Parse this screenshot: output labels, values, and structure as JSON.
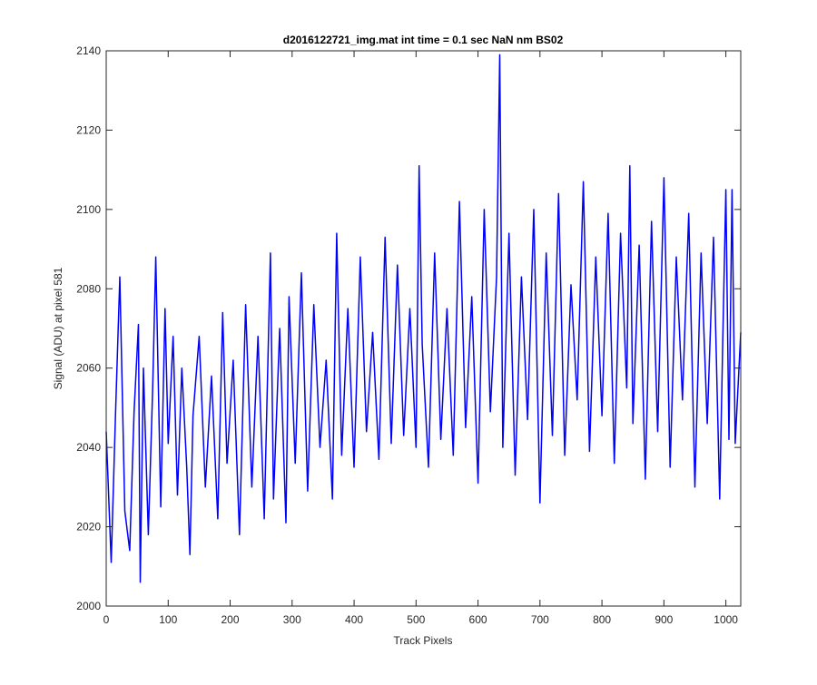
{
  "chart_data": {
    "type": "line",
    "title": "d2016122721_img.mat int time = 0.1 sec  NaN nm BS02",
    "xlabel": "Track Pixels",
    "ylabel": "Signal (ADU) at pixel 581",
    "xlim": [
      0,
      1024
    ],
    "ylim": [
      2000,
      2140
    ],
    "xticks": [
      0,
      100,
      200,
      300,
      400,
      500,
      600,
      700,
      800,
      900,
      1000
    ],
    "yticks": [
      2000,
      2020,
      2040,
      2060,
      2080,
      2100,
      2120,
      2140
    ],
    "grid": false,
    "legend": "none",
    "color": "#0000ff",
    "series": [
      {
        "x": [
          0,
          8,
          15,
          22,
          30,
          38,
          45,
          52,
          55,
          60,
          68,
          75,
          80,
          88,
          95,
          100,
          108,
          115,
          122,
          130,
          135,
          140,
          150,
          160,
          170,
          180,
          188,
          195,
          205,
          215,
          225,
          235,
          245,
          255,
          265,
          270,
          280,
          290,
          295,
          305,
          315,
          325,
          335,
          345,
          355,
          365,
          372,
          380,
          390,
          400,
          410,
          420,
          430,
          440,
          450,
          460,
          470,
          480,
          490,
          500,
          505,
          510,
          520,
          530,
          540,
          550,
          560,
          570,
          580,
          590,
          600,
          610,
          620,
          630,
          635,
          640,
          650,
          660,
          670,
          680,
          690,
          700,
          710,
          720,
          730,
          740,
          750,
          760,
          770,
          780,
          790,
          800,
          810,
          820,
          830,
          840,
          845,
          850,
          860,
          870,
          880,
          890,
          900,
          910,
          920,
          930,
          940,
          950,
          960,
          970,
          980,
          990,
          995,
          1000,
          1005,
          1010,
          1015,
          1024
        ],
        "y": [
          2044,
          2011,
          2048,
          2083,
          2024,
          2014,
          2049,
          2071,
          2006,
          2060,
          2018,
          2055,
          2088,
          2025,
          2075,
          2041,
          2068,
          2028,
          2060,
          2035,
          2013,
          2048,
          2068,
          2030,
          2058,
          2022,
          2074,
          2036,
          2062,
          2018,
          2076,
          2030,
          2068,
          2022,
          2089,
          2027,
          2070,
          2021,
          2078,
          2036,
          2084,
          2029,
          2076,
          2040,
          2062,
          2027,
          2094,
          2038,
          2075,
          2035,
          2088,
          2044,
          2069,
          2037,
          2093,
          2041,
          2086,
          2043,
          2075,
          2040,
          2111,
          2066,
          2035,
          2089,
          2042,
          2075,
          2038,
          2102,
          2045,
          2078,
          2031,
          2100,
          2049,
          2083,
          2139,
          2040,
          2094,
          2033,
          2083,
          2047,
          2100,
          2026,
          2089,
          2043,
          2104,
          2038,
          2081,
          2052,
          2107,
          2039,
          2088,
          2048,
          2099,
          2036,
          2094,
          2055,
          2111,
          2046,
          2091,
          2032,
          2097,
          2044,
          2108,
          2035,
          2088,
          2052,
          2099,
          2030,
          2089,
          2046,
          2093,
          2027,
          2067,
          2105,
          2042,
          2105,
          2041,
          2069
        ]
      }
    ]
  }
}
